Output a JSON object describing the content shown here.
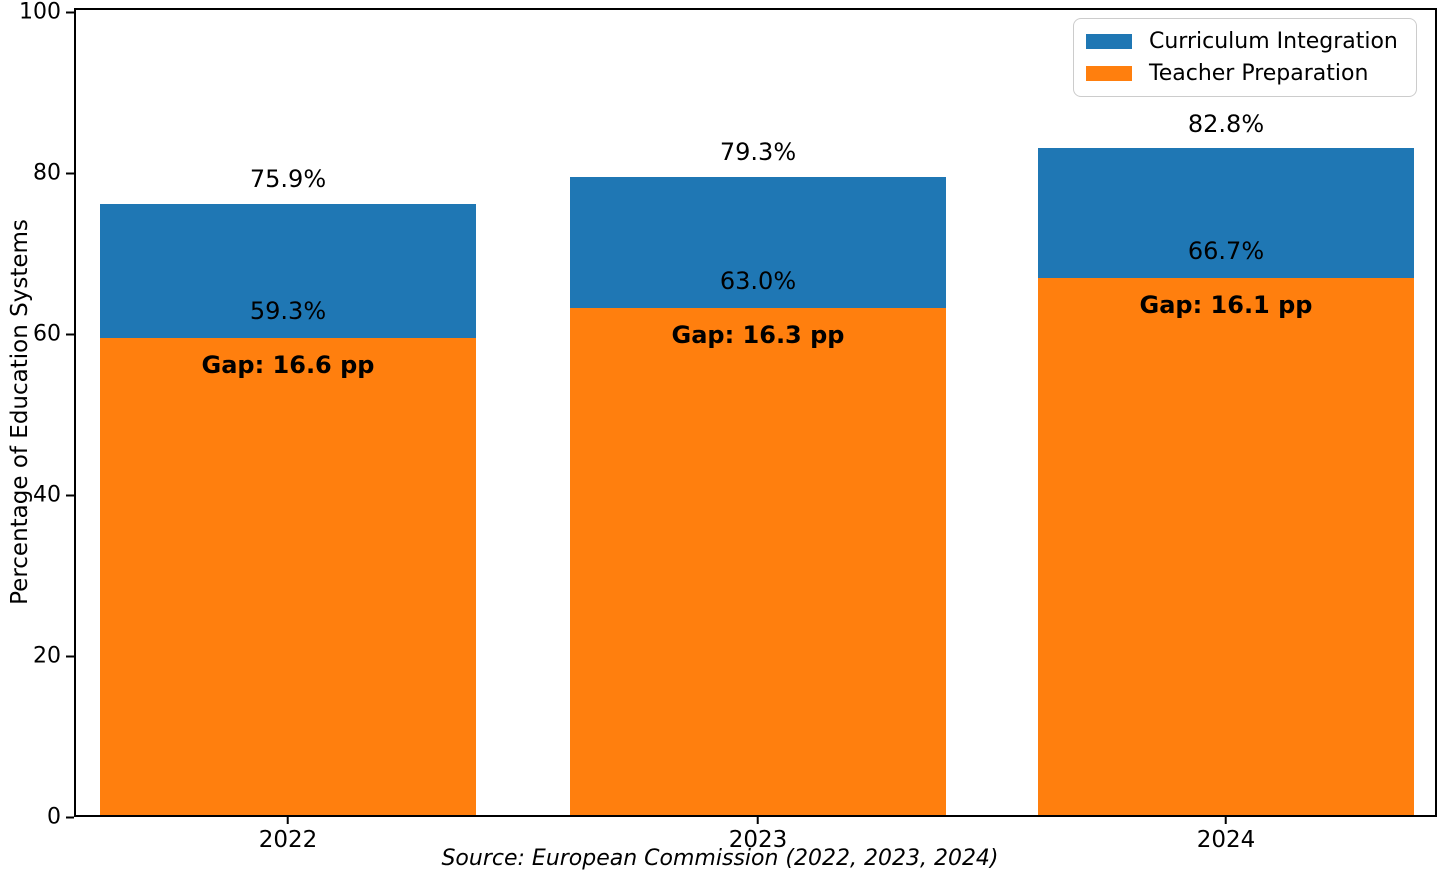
{
  "chart_data": {
    "type": "bar",
    "bar_style": "overlaid",
    "categories": [
      "2022",
      "2023",
      "2024"
    ],
    "series": [
      {
        "name": "Curriculum Integration",
        "color": "#1f77b4",
        "values": [
          75.9,
          79.3,
          82.8
        ]
      },
      {
        "name": "Teacher Preparation",
        "color": "#ff7f0e",
        "values": [
          59.3,
          63.0,
          66.7
        ]
      }
    ],
    "value_labels": {
      "curriculum": [
        "75.9%",
        "79.3%",
        "82.8%"
      ],
      "teacher": [
        "59.3%",
        "63.0%",
        "66.7%"
      ]
    },
    "gap_labels": [
      "Gap: 16.6 pp",
      "Gap: 16.3 pp",
      "Gap: 16.1 pp"
    ],
    "ylabel": "Percentage of Education Systems",
    "xlabel": "Source: European Commission (2022, 2023, 2024)",
    "ylim": [
      0,
      100
    ],
    "yticks": [
      0,
      20,
      40,
      60,
      80,
      100
    ],
    "ytick_labels": [
      "0",
      "20",
      "40",
      "60",
      "80",
      "100"
    ],
    "legend": {
      "position": "upper right",
      "entries": [
        "Curriculum Integration",
        "Teacher Preparation"
      ]
    },
    "grid": false
  }
}
